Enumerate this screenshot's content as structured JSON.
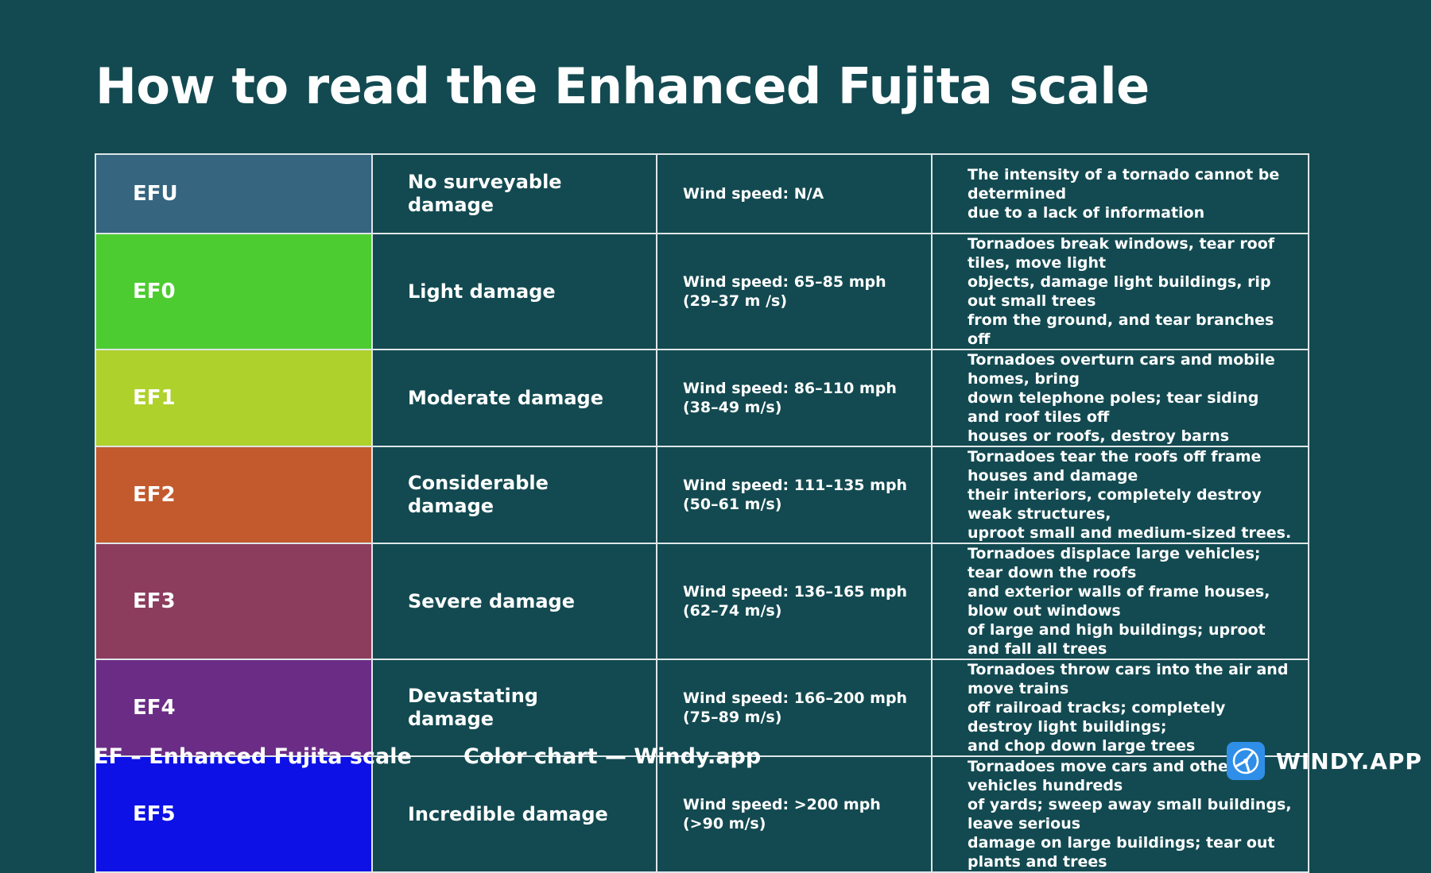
{
  "title": "How to read the Enhanced Fujita scale",
  "rows": [
    {
      "level": "EFU",
      "color": "#35657f",
      "damage": "No surveyable\ndamage",
      "wind": "Wind speed: N/A",
      "description": "The intensity of a tornado cannot be determined\ndue to a lack of information"
    },
    {
      "level": "EF0",
      "color": "#4ccc30",
      "damage": "Light damage",
      "wind": "Wind speed: 65–85 mph\n(29–37 m /s)",
      "description": "Tornadoes break windows, tear roof tiles, move light\nobjects, damage light buildings, rip out small trees\nfrom the ground, and tear branches off"
    },
    {
      "level": "EF1",
      "color": "#aed12c",
      "damage": "Moderate damage",
      "wind": "Wind speed: 86–110 mph\n(38–49 m/s)",
      "description": "Tornadoes overturn cars and mobile homes, bring\ndown telephone poles; tear siding and roof tiles off\nhouses or roofs, destroy barns"
    },
    {
      "level": "EF2",
      "color": "#c25a2e",
      "damage": "Considerable\ndamage",
      "wind": "Wind speed: 111–135 mph\n(50–61 m/s)",
      "description": "Tornadoes tear the roofs off frame houses and damage\ntheir interiors, completely destroy weak structures,\nuproot small and medium-sized trees."
    },
    {
      "level": "EF3",
      "color": "#8c3d5e",
      "damage": "Severe damage",
      "wind": "Wind speed: 136–165 mph\n(62–74 m/s)",
      "description": "Tornadoes displace large vehicles; tear down the roofs\nand exterior walls of frame houses, blow out windows\nof large and high buildings; uproot and fall all trees"
    },
    {
      "level": "EF4",
      "color": "#6b2c86",
      "damage": "Devastating\ndamage",
      "wind": "Wind speed: 166–200 mph\n(75–89 m/s)",
      "description": "Tornadoes throw cars into the air and move trains\noff railroad tracks; completely destroy light buildings;\nand chop down large trees"
    },
    {
      "level": "EF5",
      "color": "#0d11e6",
      "damage": "Incredible damage",
      "wind": "Wind speed: >200 mph\n(>90 m/s)",
      "description": "Tornadoes move cars and other vehicles hundreds\nof yards; sweep away small buildings, leave serious\ndamage on large buildings; tear out plants and trees"
    }
  ],
  "footer": {
    "legend": "EF – Enhanced Fujita scale",
    "credit": "Color chart — Windy.app",
    "logo_text": "WINDY.APP",
    "logo_icon": "windy-app-logo-icon"
  }
}
